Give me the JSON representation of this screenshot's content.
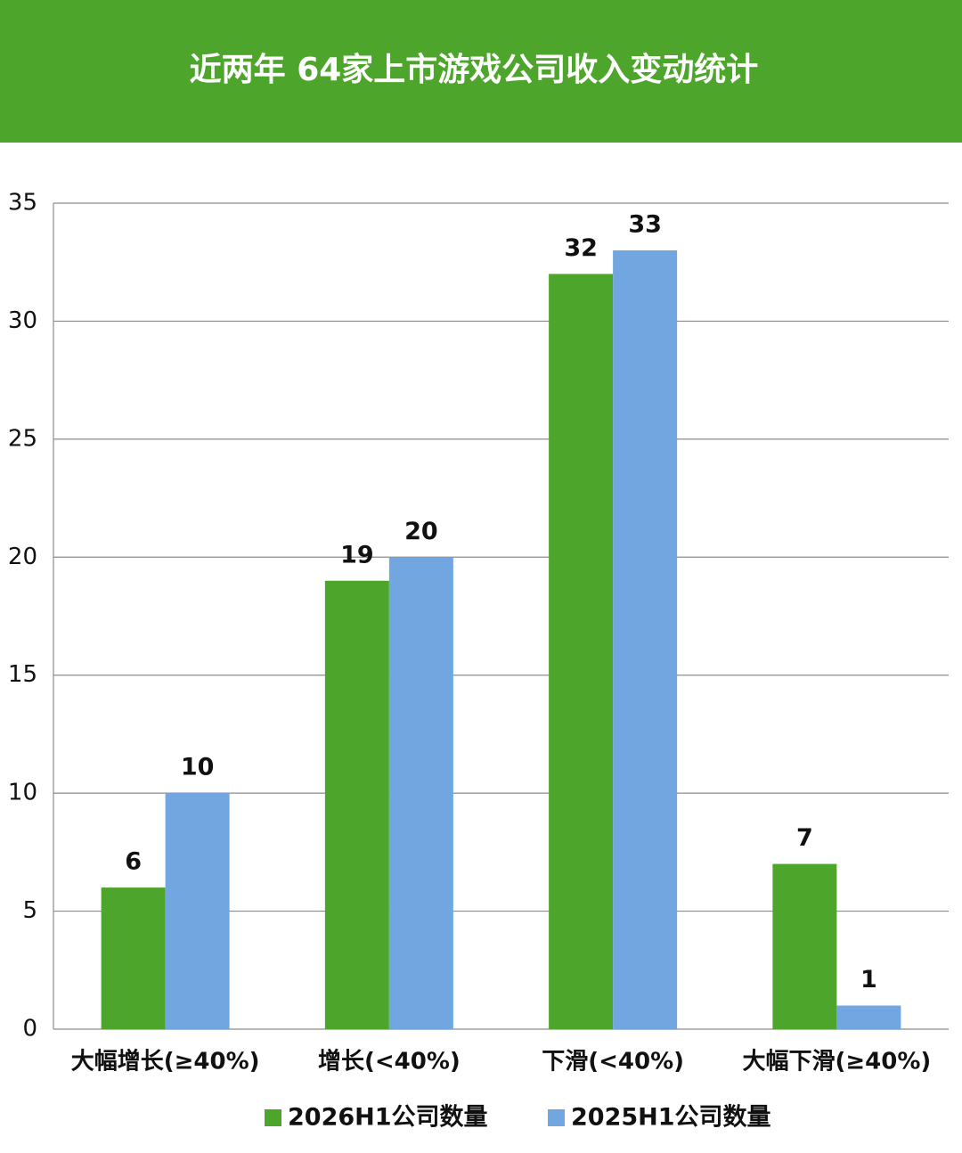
{
  "chart_data": {
    "type": "bar",
    "title": "近两年 64家上市游戏公司收入变动统计",
    "categories": [
      "大幅增长(≥40%)",
      "增长(<40%)",
      "下滑(<40%)",
      "大幅下滑(≥40%)"
    ],
    "series": [
      {
        "name": "2026H1公司数量",
        "color": "#4ea52b",
        "values": [
          6,
          19,
          32,
          7
        ]
      },
      {
        "name": "2025H1公司数量",
        "color": "#72a6e0",
        "values": [
          10,
          20,
          33,
          1
        ]
      }
    ],
    "ylim": [
      0,
      35
    ],
    "yticks": [
      0,
      5,
      10,
      15,
      20,
      25,
      30,
      35
    ],
    "grid": true,
    "legend": "bottom"
  }
}
